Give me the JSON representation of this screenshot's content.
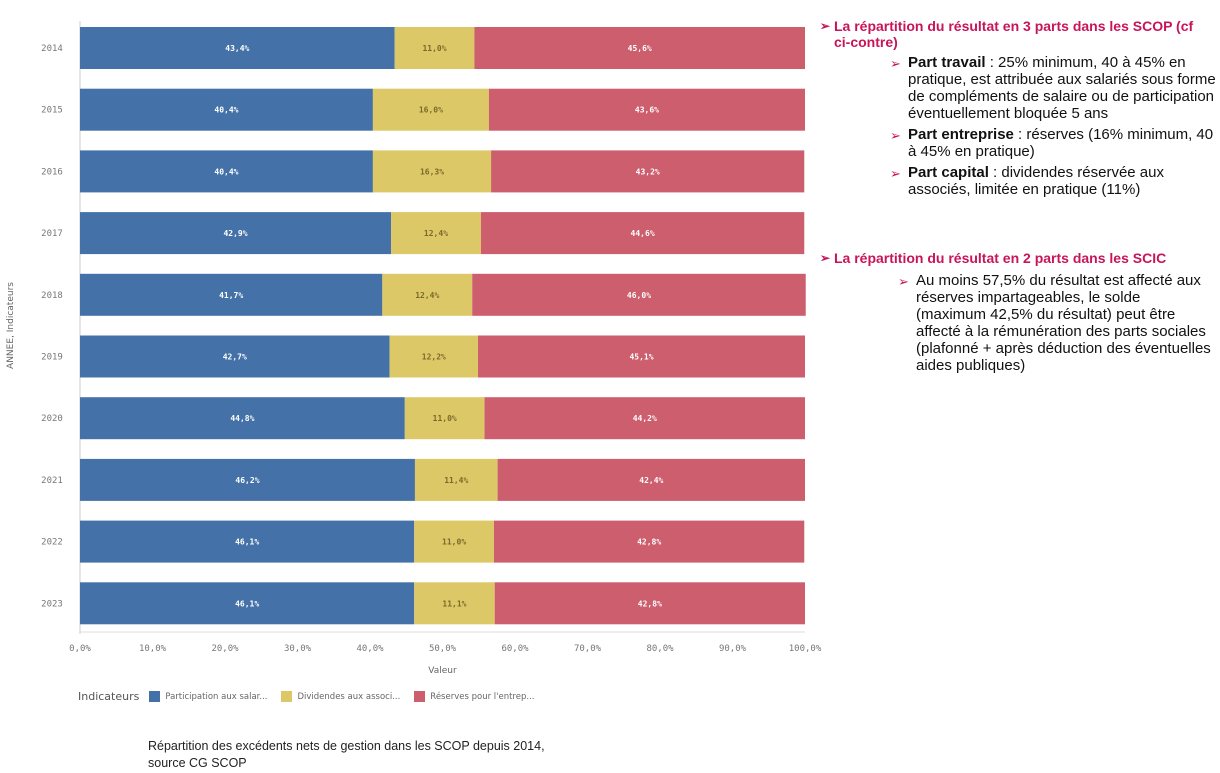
{
  "chart_data": {
    "type": "bar",
    "orientation": "horizontal",
    "stacked": true,
    "categories": [
      "2014",
      "2015",
      "2016",
      "2017",
      "2018",
      "2019",
      "2020",
      "2021",
      "2022",
      "2023"
    ],
    "series": [
      {
        "name": "Participation aux salar...",
        "color": "#4472a8",
        "values": [
          43.4,
          40.4,
          40.4,
          42.9,
          41.7,
          42.7,
          44.8,
          46.2,
          46.1,
          46.1
        ],
        "labels": [
          "43,4%",
          "40,4%",
          "40,4%",
          "42,9%",
          "41,7%",
          "42,7%",
          "44,8%",
          "46,2%",
          "46,1%",
          "46,1%"
        ]
      },
      {
        "name": "Dividendes aux associ...",
        "color": "#ddc868",
        "values": [
          11.0,
          16.0,
          16.3,
          12.4,
          12.4,
          12.2,
          11.0,
          11.4,
          11.0,
          11.1
        ],
        "labels": [
          "11,0%",
          "16,0%",
          "16,3%",
          "12,4%",
          "12,4%",
          "12,2%",
          "11,0%",
          "11,4%",
          "11,0%",
          "11,1%"
        ]
      },
      {
        "name": "Réserves pour l'entrep...",
        "color": "#cc5e6e",
        "values": [
          45.6,
          43.6,
          43.2,
          44.6,
          46.0,
          45.1,
          44.2,
          42.4,
          42.8,
          42.8
        ],
        "labels": [
          "45,6%",
          "43,6%",
          "43,2%",
          "44,6%",
          "46,0%",
          "45,1%",
          "44,2%",
          "42,4%",
          "42,8%",
          "42,8%"
        ]
      }
    ],
    "xlim": [
      0,
      100
    ],
    "xticks": [
      "0,0%",
      "10,0%",
      "20,0%",
      "30,0%",
      "40,0%",
      "50,0%",
      "60,0%",
      "70,0%",
      "80,0%",
      "90,0%",
      "100,0%"
    ],
    "xlabel": "Valeur",
    "ylabel": "ANNEE, Indicateurs",
    "legend_title": "Indicateurs",
    "legend_position": "bottom-left",
    "grid": false
  },
  "caption": {
    "line1": "Répartition des excédents nets de gestion dans les SCOP depuis 2014,",
    "line2": "source CG SCOP"
  },
  "panel": {
    "arrow": "➢",
    "scop_heading": "La répartition du résultat en 3 parts dans les SCOP (cf ci-contre)",
    "travail_title": "Part travail",
    "travail_text": " : 25% minimum,  40 à 45% en pratique, est attribuée aux salariés sous forme de compléments de salaire ou de participation éventuellement bloquée  5 ans",
    "entreprise_title": "Part entreprise",
    "entreprise_text": " : réserves (16% minimum,  40 à 45% en pratique)",
    "capital_title": "Part capital",
    "capital_text": " : dividendes réservée aux associés, limitée en pratique (11%)",
    "scic_heading": "La répartition du résultat en 2 parts dans les SCIC",
    "scic_text": "Au moins 57,5% du résultat est affecté aux réserves impartageables,  le solde (maximum 42,5% du résultat) peut être affecté à la rémunération des parts sociales (plafonné + après déduction des éventuelles aides publiques)"
  }
}
